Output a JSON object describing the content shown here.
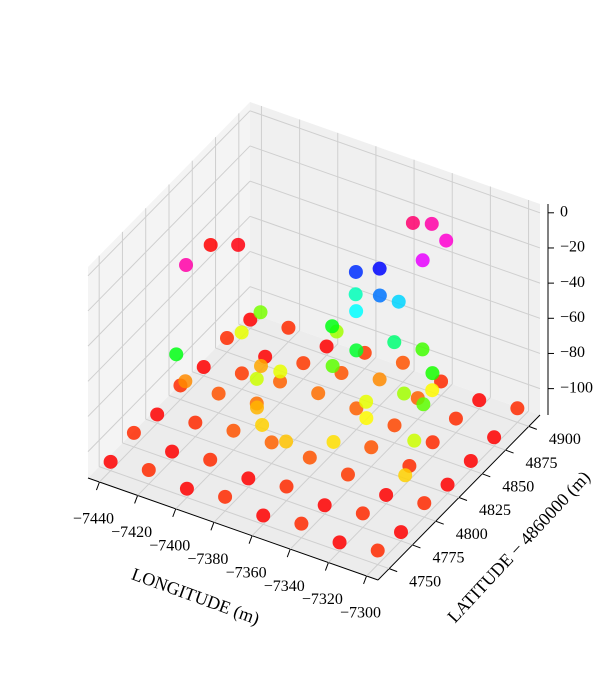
{
  "chart_data": {
    "type": "scatter3d",
    "xlabel": "LONGITUDE (m)",
    "ylabel": "LATITUDE − 4860000 (m)",
    "colormap": "hsv",
    "xlim": [
      -7446,
      -7294
    ],
    "ylim": [
      4738,
      4912
    ],
    "zlim": [
      -115,
      5
    ],
    "xticks": [
      {
        "value": -7440,
        "label": "−7440"
      },
      {
        "value": -7420,
        "label": "−7420"
      },
      {
        "value": -7400,
        "label": "−7400"
      },
      {
        "value": -7380,
        "label": "−7380"
      },
      {
        "value": -7360,
        "label": "−7360"
      },
      {
        "value": -7340,
        "label": "−7340"
      },
      {
        "value": -7320,
        "label": "−7320"
      },
      {
        "value": -7300,
        "label": "−7300"
      }
    ],
    "yticks": [
      4750,
      4775,
      4800,
      4825,
      4850,
      4875,
      4900
    ],
    "zticks": [
      0,
      {
        "value": -20,
        "label": "−20"
      },
      {
        "value": -40,
        "label": "−40"
      },
      {
        "value": -60,
        "label": "−60"
      },
      {
        "value": -80,
        "label": "−80"
      },
      {
        "value": -100,
        "label": "−100"
      }
    ],
    "grid": true,
    "x": [
      -7440,
      -7420,
      -7400,
      -7380,
      -7360,
      -7340,
      -7320,
      -7300,
      -7440,
      -7420,
      -7400,
      -7380,
      -7360,
      -7340,
      -7320,
      -7300,
      -7440,
      -7420,
      -7400,
      -7380,
      -7360,
      -7340,
      -7320,
      -7300,
      -7440,
      -7420,
      -7400,
      -7340,
      -7320,
      -7300,
      -7440,
      -7420,
      -7400,
      -7380,
      -7360,
      -7340,
      -7320,
      -7300,
      -7440,
      -7420,
      -7400,
      -7380,
      -7360,
      -7340,
      -7320,
      -7300,
      -7440,
      -7420,
      -7400,
      -7380,
      -7360,
      -7340,
      -7320,
      -7300,
      -7395,
      -7385,
      -7370,
      -7350,
      -7345,
      -7395,
      -7400,
      -7420,
      -7425,
      -7410,
      -7435,
      -7430,
      -7320,
      -7315,
      -7325,
      -7310,
      -7330,
      -7350,
      -7335,
      -7385,
      -7340,
      -7370,
      -7345,
      -7360,
      -7380,
      -7375,
      -7350,
      -7365,
      -7355,
      -7360,
      -7370,
      -7345,
      -7340,
      -7330,
      -7335,
      -7420,
      -7410,
      -7400
    ],
    "y": [
      4750,
      4750,
      4750,
      4750,
      4750,
      4750,
      4750,
      4750,
      4775,
      4775,
      4775,
      4775,
      4775,
      4775,
      4775,
      4775,
      4800,
      4800,
      4800,
      4800,
      4800,
      4800,
      4800,
      4800,
      4825,
      4825,
      4825,
      4825,
      4825,
      4825,
      4850,
      4850,
      4850,
      4850,
      4850,
      4850,
      4850,
      4850,
      4875,
      4875,
      4875,
      4875,
      4875,
      4875,
      4875,
      4875,
      4900,
      4900,
      4900,
      4900,
      4900,
      4900,
      4900,
      4900,
      4815,
      4800,
      4795,
      4805,
      4830,
      4840,
      4825,
      4870,
      4860,
      4850,
      4820,
      4800,
      4840,
      4820,
      4860,
      4800,
      4870,
      4840,
      4850,
      4880,
      4880,
      4845,
      4860,
      4850,
      4865,
      4880,
      4875,
      4860,
      4865,
      4875,
      4870,
      4880,
      4890,
      4885,
      4870,
      4790,
      4796,
      4805
    ],
    "z": [
      -110,
      -107,
      -110,
      -107,
      -110,
      -107,
      -110,
      -107,
      -107,
      -110,
      -107,
      -110,
      -107,
      -110,
      -107,
      -110,
      -110,
      -107,
      -104,
      -103,
      -104,
      -106,
      -110,
      -107,
      -107,
      -104,
      -102,
      -104,
      -107,
      -110,
      -110,
      -106,
      -103,
      -102,
      -103,
      -105,
      -107,
      -110,
      -107,
      -110,
      -106,
      -104,
      -100,
      -103,
      -107,
      -110,
      -110,
      -107,
      -110,
      -106,
      -104,
      -107,
      -110,
      -107,
      -97,
      -95,
      -96,
      -94,
      -92,
      -90,
      -88,
      -82,
      -90,
      -98,
      -100,
      -72,
      -80,
      -88,
      -75,
      -95,
      -92,
      -90,
      -85,
      -85,
      -78,
      -80,
      -65,
      -70,
      -72,
      -60,
      -52,
      -55,
      -45,
      -37,
      -40,
      -8,
      -12,
      -15,
      -20,
      -12,
      0,
      -1
    ]
  }
}
